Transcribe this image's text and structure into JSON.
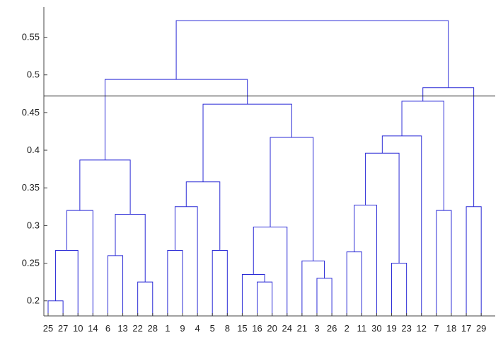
{
  "chart_data": {
    "type": "dendrogram",
    "title": "",
    "xlabel": "",
    "ylabel": "",
    "ylim": [
      0.18,
      0.59
    ],
    "yticks": [
      0.2,
      0.25,
      0.3,
      0.35,
      0.4,
      0.45,
      0.5,
      0.55
    ],
    "ytick_labels": [
      "0.2",
      "0.25",
      "0.3",
      "0.35",
      "0.4",
      "0.45",
      "0.5",
      "0.55"
    ],
    "leaf_order": [
      "25",
      "27",
      "10",
      "14",
      "6",
      "13",
      "22",
      "28",
      "1",
      "9",
      "4",
      "5",
      "8",
      "15",
      "16",
      "20",
      "24",
      "21",
      "3",
      "26",
      "2",
      "11",
      "30",
      "19",
      "23",
      "12",
      "7",
      "18",
      "17",
      "29"
    ],
    "cut_line": 0.472,
    "merges": [
      {
        "children": [
          "L:25",
          "L:27"
        ],
        "height": 0.2
      },
      {
        "children": [
          "M:0",
          "L:10"
        ],
        "height": 0.267
      },
      {
        "children": [
          "M:1",
          "L:14"
        ],
        "height": 0.32
      },
      {
        "children": [
          "L:6",
          "L:13"
        ],
        "height": 0.26
      },
      {
        "children": [
          "L:22",
          "L:28"
        ],
        "height": 0.225
      },
      {
        "children": [
          "M:3",
          "M:4"
        ],
        "height": 0.315
      },
      {
        "children": [
          "M:2",
          "M:5"
        ],
        "height": 0.387
      },
      {
        "children": [
          "L:1",
          "L:9"
        ],
        "height": 0.267
      },
      {
        "children": [
          "M:7",
          "L:4"
        ],
        "height": 0.325
      },
      {
        "children": [
          "L:5",
          "L:8"
        ],
        "height": 0.267
      },
      {
        "children": [
          "M:8",
          "M:9"
        ],
        "height": 0.358
      },
      {
        "children": [
          "L:16",
          "L:20"
        ],
        "height": 0.225
      },
      {
        "children": [
          "L:15",
          "M:11"
        ],
        "height": 0.235
      },
      {
        "children": [
          "M:12",
          "L:24"
        ],
        "height": 0.298
      },
      {
        "children": [
          "L:3",
          "L:26"
        ],
        "height": 0.23
      },
      {
        "children": [
          "L:21",
          "M:14"
        ],
        "height": 0.253
      },
      {
        "children": [
          "M:13",
          "M:15"
        ],
        "height": 0.417
      },
      {
        "children": [
          "M:10",
          "M:16"
        ],
        "height": 0.461
      },
      {
        "children": [
          "M:6",
          "M:17"
        ],
        "height": 0.494
      },
      {
        "children": [
          "L:2",
          "L:11"
        ],
        "height": 0.265
      },
      {
        "children": [
          "M:19",
          "L:30"
        ],
        "height": 0.327
      },
      {
        "children": [
          "L:19",
          "L:23"
        ],
        "height": 0.25
      },
      {
        "children": [
          "M:20",
          "M:21"
        ],
        "height": 0.396
      },
      {
        "children": [
          "M:22",
          "L:12"
        ],
        "height": 0.419
      },
      {
        "children": [
          "L:7",
          "L:18"
        ],
        "height": 0.32
      },
      {
        "children": [
          "M:23",
          "M:24"
        ],
        "height": 0.465
      },
      {
        "children": [
          "L:17",
          "L:29"
        ],
        "height": 0.325
      },
      {
        "children": [
          "M:25",
          "M:26"
        ],
        "height": 0.483
      },
      {
        "children": [
          "M:18",
          "M:27"
        ],
        "height": 0.572
      }
    ]
  },
  "colors": {
    "link": "#2b2bd6",
    "cut_line": "#111111",
    "axis": "#444444",
    "text": "#222222",
    "background": "#ffffff"
  }
}
